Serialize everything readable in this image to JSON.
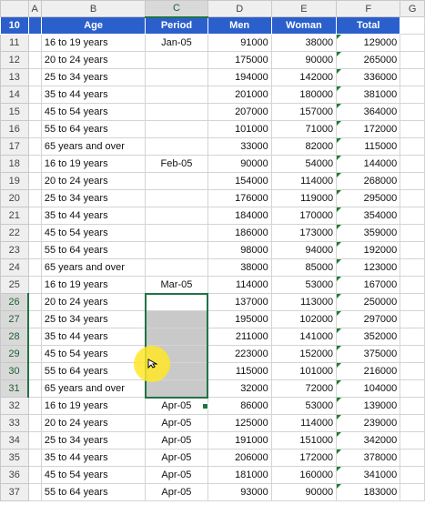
{
  "columns": [
    "",
    "A",
    "B",
    "C",
    "D",
    "E",
    "F",
    "G"
  ],
  "header": {
    "row": "10",
    "age": "Age",
    "period": "Period",
    "men": "Men",
    "woman": "Woman",
    "total": "Total"
  },
  "rows": [
    {
      "row": "11",
      "age": "16 to 19 years",
      "period": "Jan-05",
      "men": "91000",
      "woman": "38000",
      "total": "129000"
    },
    {
      "row": "12",
      "age": "20 to 24 years",
      "period": "",
      "men": "175000",
      "woman": "90000",
      "total": "265000"
    },
    {
      "row": "13",
      "age": "25 to 34 years",
      "period": "",
      "men": "194000",
      "woman": "142000",
      "total": "336000"
    },
    {
      "row": "14",
      "age": "35 to 44 years",
      "period": "",
      "men": "201000",
      "woman": "180000",
      "total": "381000"
    },
    {
      "row": "15",
      "age": "45 to 54 years",
      "period": "",
      "men": "207000",
      "woman": "157000",
      "total": "364000"
    },
    {
      "row": "16",
      "age": "55 to 64 years",
      "period": "",
      "men": "101000",
      "woman": "71000",
      "total": "172000"
    },
    {
      "row": "17",
      "age": "65 years and over",
      "period": "",
      "men": "33000",
      "woman": "82000",
      "total": "115000"
    },
    {
      "row": "18",
      "age": "16 to 19 years",
      "period": "Feb-05",
      "men": "90000",
      "woman": "54000",
      "total": "144000"
    },
    {
      "row": "19",
      "age": "20 to 24 years",
      "period": "",
      "men": "154000",
      "woman": "114000",
      "total": "268000"
    },
    {
      "row": "20",
      "age": "25 to 34 years",
      "period": "",
      "men": "176000",
      "woman": "119000",
      "total": "295000"
    },
    {
      "row": "21",
      "age": "35 to 44 years",
      "period": "",
      "men": "184000",
      "woman": "170000",
      "total": "354000"
    },
    {
      "row": "22",
      "age": "45 to 54 years",
      "period": "",
      "men": "186000",
      "woman": "173000",
      "total": "359000"
    },
    {
      "row": "23",
      "age": "55 to 64 years",
      "period": "",
      "men": "98000",
      "woman": "94000",
      "total": "192000"
    },
    {
      "row": "24",
      "age": "65 years and over",
      "period": "",
      "men": "38000",
      "woman": "85000",
      "total": "123000"
    },
    {
      "row": "25",
      "age": "16 to 19 years",
      "period": "Mar-05",
      "men": "114000",
      "woman": "53000",
      "total": "167000"
    },
    {
      "row": "26",
      "age": "20 to 24 years",
      "period": "",
      "men": "137000",
      "woman": "113000",
      "total": "250000"
    },
    {
      "row": "27",
      "age": "25 to 34 years",
      "period": "",
      "men": "195000",
      "woman": "102000",
      "total": "297000"
    },
    {
      "row": "28",
      "age": "35 to 44 years",
      "period": "",
      "men": "211000",
      "woman": "141000",
      "total": "352000"
    },
    {
      "row": "29",
      "age": "45 to 54 years",
      "period": "",
      "men": "223000",
      "woman": "152000",
      "total": "375000"
    },
    {
      "row": "30",
      "age": "55 to 64 years",
      "period": "",
      "men": "115000",
      "woman": "101000",
      "total": "216000"
    },
    {
      "row": "31",
      "age": "65 years and over",
      "period": "",
      "men": "32000",
      "woman": "72000",
      "total": "104000"
    },
    {
      "row": "32",
      "age": "16 to 19 years",
      "period": "Apr-05",
      "men": "86000",
      "woman": "53000",
      "total": "139000"
    },
    {
      "row": "33",
      "age": "20 to 24 years",
      "period": "Apr-05",
      "men": "125000",
      "woman": "114000",
      "total": "239000"
    },
    {
      "row": "34",
      "age": "25 to 34 years",
      "period": "Apr-05",
      "men": "191000",
      "woman": "151000",
      "total": "342000"
    },
    {
      "row": "35",
      "age": "35 to 44 years",
      "period": "Apr-05",
      "men": "206000",
      "woman": "172000",
      "total": "378000"
    },
    {
      "row": "36",
      "age": "45 to 54 years",
      "period": "Apr-05",
      "men": "181000",
      "woman": "160000",
      "total": "341000"
    },
    {
      "row": "37",
      "age": "55 to 64 years",
      "period": "Apr-05",
      "men": "93000",
      "woman": "90000",
      "total": "183000"
    }
  ],
  "selection": {
    "column": "C",
    "rows": [
      "26",
      "27",
      "28",
      "29",
      "30",
      "31"
    ]
  },
  "icons": {
    "cursor": "cursor-arrow-icon",
    "error_indicator": "error-indicator-icon"
  },
  "colors": {
    "header_fill": "#2b5fcc",
    "selection": "#217346",
    "cursor_halo": "#ffe628"
  }
}
